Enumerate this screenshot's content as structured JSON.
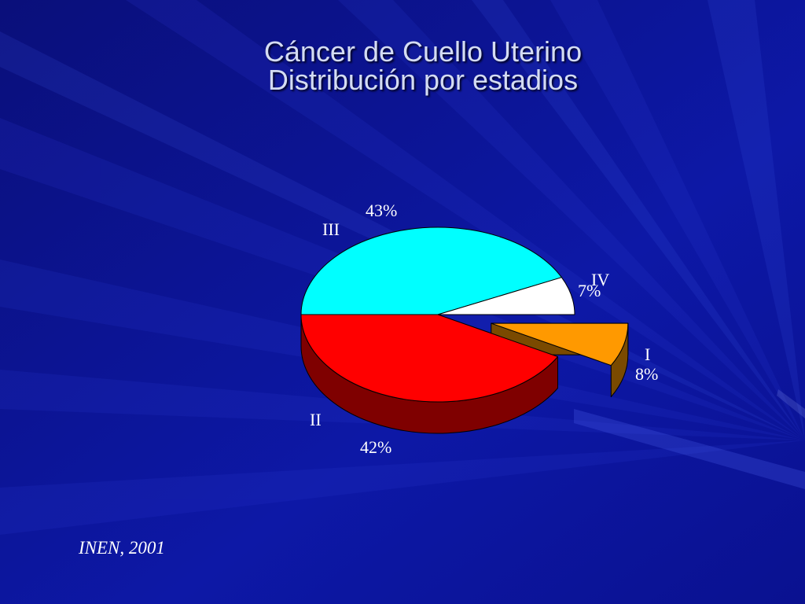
{
  "title": "Cáncer de Cuello Uterino",
  "subtitle": "Distribución por estadios",
  "source": "INEN, 2001",
  "chart_data": {
    "type": "pie",
    "title": "Cáncer de Cuello Uterino",
    "subtitle": "Distribución por estadios",
    "three_d": true,
    "slices": [
      {
        "name": "III",
        "value": 43,
        "label": "43%",
        "color": "#00ffff",
        "side_color": "#008080"
      },
      {
        "name": "IV",
        "value": 7,
        "label": "7%",
        "color": "#ffffff",
        "side_color": "#9a9a9a"
      },
      {
        "name": "I",
        "value": 8,
        "label": "8%",
        "color": "#ff9900",
        "side_color": "#7a4a00",
        "exploded": true
      },
      {
        "name": "II",
        "value": 42,
        "label": "42%",
        "color": "#ff0000",
        "side_color": "#7f0000"
      }
    ]
  }
}
